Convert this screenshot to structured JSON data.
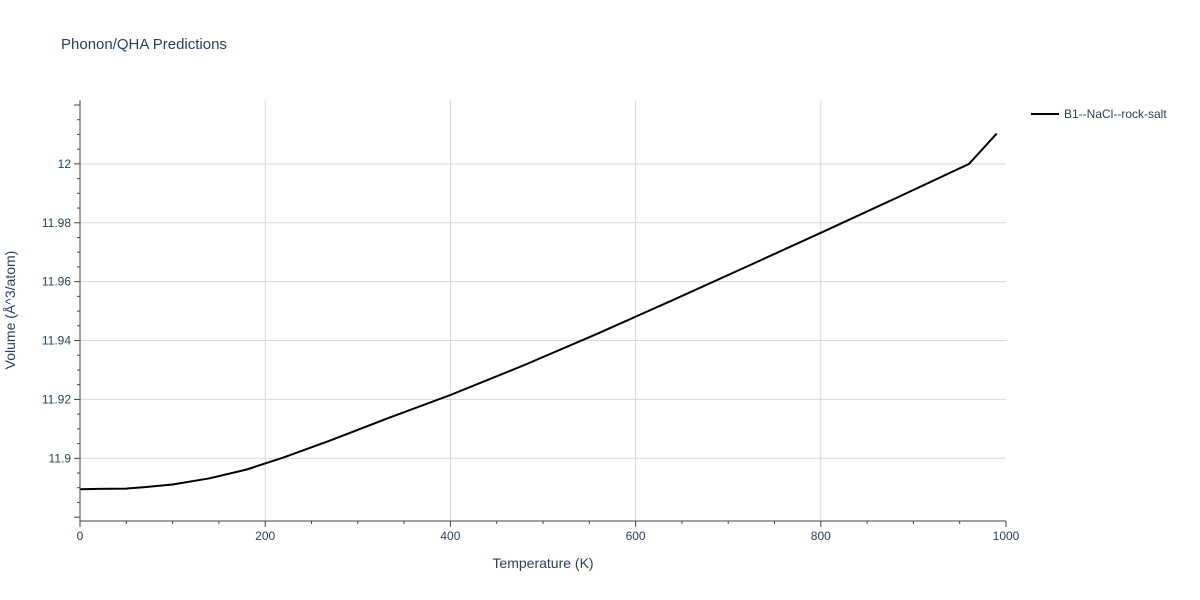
{
  "chart_data": {
    "type": "line",
    "title": "Phonon/QHA Predictions",
    "xlabel": "Temperature (K)",
    "ylabel": "Volume (Å^3/atom)",
    "xlim": [
      0,
      1000
    ],
    "ylim": [
      11.8787,
      12.0217
    ],
    "x_ticks": [
      0,
      200,
      400,
      600,
      800,
      1000
    ],
    "x_tick_labels": [
      "0",
      "200",
      "400",
      "600",
      "800",
      "1000"
    ],
    "y_ticks": [
      11.9,
      11.92,
      11.94,
      11.96,
      11.98,
      12.0
    ],
    "y_tick_labels": [
      "11.9",
      "11.92",
      "11.94",
      "11.96",
      "11.98",
      "12"
    ],
    "grid": true,
    "legend_position": "top-right",
    "series": [
      {
        "name": "B1--NaCl--rock-salt",
        "color": "#000000",
        "x": [
          0,
          20,
          50,
          70,
          100,
          140,
          180,
          220,
          270,
          330,
          400,
          480,
          560,
          640,
          720,
          800,
          880,
          960,
          990
        ],
        "y": [
          11.8895,
          11.8896,
          11.8897,
          11.8902,
          11.8911,
          11.8932,
          11.8962,
          11.9003,
          11.906,
          11.9133,
          11.9215,
          11.9317,
          11.9425,
          11.9537,
          11.9651,
          11.9766,
          11.9882,
          12.0,
          12.0103
        ]
      }
    ]
  }
}
